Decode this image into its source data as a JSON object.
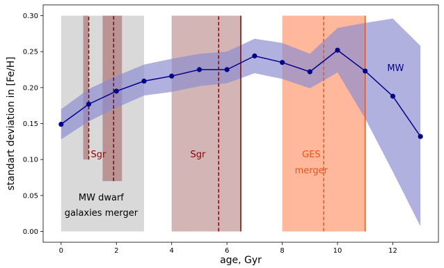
{
  "chart_data": {
    "type": "line",
    "xlabel": "age, Gyr",
    "ylabel": "standart deviation in [Fe/H]",
    "xlim": [
      -0.65,
      13.65
    ],
    "ylim": [
      -0.015,
      0.315
    ],
    "xticks": [
      0,
      2,
      4,
      6,
      8,
      10,
      12
    ],
    "yticks": [
      0.0,
      0.05,
      0.1,
      0.15,
      0.2,
      0.25,
      0.3
    ],
    "ytick_labels": [
      "0.00",
      "0.05",
      "0.10",
      "0.15",
      "0.20",
      "0.25",
      "0.30"
    ],
    "grid": false,
    "series": [
      {
        "name": "MW",
        "color": "#00008b",
        "band_color": "#8c8cd0",
        "x": [
          0,
          1,
          2,
          3,
          4,
          5,
          6,
          7,
          8,
          9,
          10,
          11,
          12,
          13
        ],
        "y": [
          0.149,
          0.177,
          0.195,
          0.209,
          0.216,
          0.225,
          0.225,
          0.244,
          0.235,
          0.222,
          0.252,
          0.223,
          0.188,
          0.132
        ],
        "upper": [
          0.17,
          0.198,
          0.216,
          0.232,
          0.24,
          0.247,
          0.25,
          0.268,
          0.262,
          0.247,
          0.283,
          0.29,
          0.296,
          0.258
        ],
        "lower": [
          0.128,
          0.153,
          0.172,
          0.189,
          0.194,
          0.202,
          0.206,
          0.22,
          0.212,
          0.199,
          0.221,
          0.157,
          0.083,
          0.007
        ]
      }
    ],
    "regions": [
      {
        "id": "mw-dwarf",
        "x0": 0,
        "x1": 3,
        "y0": 0,
        "y1": 0.3,
        "color": "#d9d9d9",
        "alpha": 1
      },
      {
        "id": "sgr-early-1",
        "x0": 0.8,
        "x1": 1.0,
        "y0": 0.1,
        "y1": 0.3,
        "color": "#a05a5a",
        "alpha": 0.55
      },
      {
        "id": "sgr-early-2",
        "x0": 1.5,
        "x1": 2.2,
        "y0": 0.07,
        "y1": 0.3,
        "color": "#a05a5a",
        "alpha": 0.55
      },
      {
        "id": "sgr-main",
        "x0": 4,
        "x1": 6.5,
        "y0": 0,
        "y1": 0.3,
        "color": "#a05a5a",
        "alpha": 0.45
      },
      {
        "id": "ges",
        "x0": 8,
        "x1": 11,
        "y0": 0,
        "y1": 0.3,
        "color": "#ffa07a",
        "alpha": 0.75
      }
    ],
    "vlines": [
      {
        "x": 1.0,
        "y0": 0.1,
        "y1": 0.3,
        "color": "#800000",
        "dash": true
      },
      {
        "x": 1.9,
        "y0": 0.07,
        "y1": 0.3,
        "color": "#800000",
        "dash": true
      },
      {
        "x": 5.7,
        "y0": 0,
        "y1": 0.3,
        "color": "#800000",
        "dash": true
      },
      {
        "x": 6.5,
        "y0": 0,
        "y1": 0.3,
        "color": "#800000",
        "dash": false
      },
      {
        "x": 9.5,
        "y0": 0,
        "y1": 0.3,
        "color": "#e8541a",
        "dash": true
      },
      {
        "x": 11.0,
        "y0": 0,
        "y1": 0.3,
        "color": "#e8541a",
        "dash": false
      }
    ],
    "annotations": [
      {
        "id": "sgr-small",
        "text": "Sgr",
        "x": 1.35,
        "y": 0.103,
        "color": "#8b0000"
      },
      {
        "id": "mw-dwarf-1",
        "text": "MW dwarf",
        "x": 1.45,
        "y": 0.043,
        "color": "#000000"
      },
      {
        "id": "mw-dwarf-2",
        "text": "galaxies merger",
        "x": 1.45,
        "y": 0.022,
        "color": "#000000"
      },
      {
        "id": "sgr-main",
        "text": "Sgr",
        "x": 4.95,
        "y": 0.103,
        "color": "#8b0000"
      },
      {
        "id": "ges-1",
        "text": "GES",
        "x": 9.05,
        "y": 0.103,
        "color": "#e8541a"
      },
      {
        "id": "ges-2",
        "text": "merger",
        "x": 9.05,
        "y": 0.081,
        "color": "#e8541a"
      },
      {
        "id": "mw-label",
        "text": "MW",
        "x": 12.1,
        "y": 0.223,
        "color": "#00008b"
      }
    ]
  }
}
